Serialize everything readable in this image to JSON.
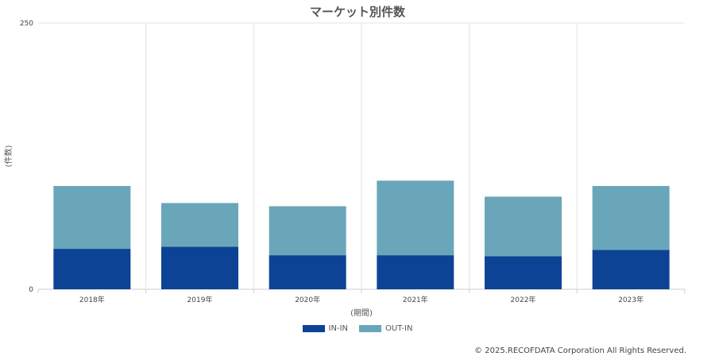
{
  "chart_data": {
    "type": "bar",
    "stacked": true,
    "title": "マーケット別件数",
    "xlabel": "(期間)",
    "ylabel": "(件数)",
    "ylim": [
      0,
      250
    ],
    "yticks": [
      "0",
      "250"
    ],
    "categories": [
      "2018年",
      "2019年",
      "2020年",
      "2021年",
      "2022年",
      "2023年"
    ],
    "series": [
      {
        "name": "IN-IN",
        "color": "#0d4395",
        "values": [
          38,
          40,
          32,
          32,
          31,
          37
        ]
      },
      {
        "name": "OUT-IN",
        "color": "#6aa6ba",
        "values": [
          59,
          41,
          46,
          70,
          56,
          60
        ]
      }
    ],
    "grid": true,
    "legend": "bottom-center"
  },
  "copyright": "© 2025.RECOFDATA Corporation All Rights Reserved."
}
